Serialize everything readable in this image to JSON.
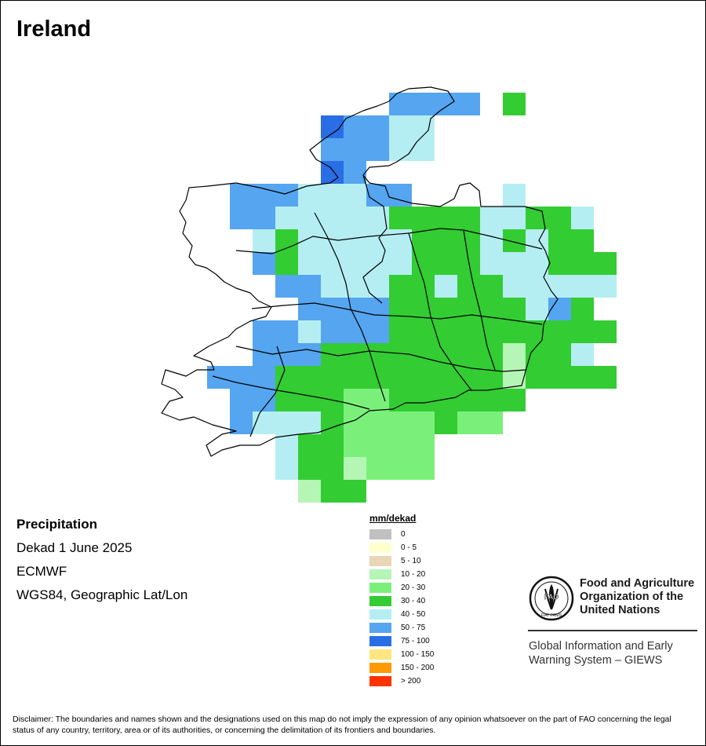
{
  "title": "Ireland",
  "info": {
    "variable": "Precipitation",
    "period": "Dekad 1 June 2025",
    "source": "ECMWF",
    "projection": "WGS84, Geographic Lat/Lon"
  },
  "legend": {
    "unit": "mm/dekad",
    "classes": [
      {
        "label": "0",
        "color": "#c0c0c0"
      },
      {
        "label": "0 - 5",
        "color": "#ffffcc"
      },
      {
        "label": "5 - 10",
        "color": "#ead6b5"
      },
      {
        "label": "10 - 20",
        "color": "#b5f5b5"
      },
      {
        "label": "20 - 30",
        "color": "#7af07a"
      },
      {
        "label": "30 - 40",
        "color": "#33cc33"
      },
      {
        "label": "40 - 50",
        "color": "#b5eef2"
      },
      {
        "label": "50 - 75",
        "color": "#55a5f0"
      },
      {
        "label": "75 - 100",
        "color": "#2a6ee6"
      },
      {
        "label": "100 - 150",
        "color": "#ffe680"
      },
      {
        "label": "150 - 200",
        "color": "#ff9a00"
      },
      {
        "label": "> 200",
        "color": "#ff3300"
      }
    ]
  },
  "organization": {
    "name": "Food and Agriculture Organization of the United Nations",
    "program": "Global Information and Early Warning System – GIEWS",
    "logo_text": "FAO",
    "motto": "FIAT PANIS"
  },
  "disclaimer": "Disclaimer: The boundaries and names shown and the designations used on this map do not imply the expression of any opinion whatsoever on the part of FAO concerning the legal status of any country, territory, area or of its authorities, or concerning the delimitation of its frontiers and boundaries.",
  "grid": [
    [
      "",
      "",
      "",
      "",
      "",
      "",
      "",
      "",
      "",
      "",
      "",
      "",
      "",
      "",
      ""
    ],
    [
      "",
      "",
      "",
      "",
      "",
      "",
      "",
      "",
      "",
      "",
      "",
      "",
      "",
      "",
      ""
    ],
    [
      "",
      "",
      "",
      "",
      "",
      "",
      "",
      "",
      "",
      "",
      "",
      "",
      "",
      "",
      ""
    ],
    [
      "",
      "",
      "",
      "",
      "",
      "",
      "",
      "",
      "",
      "",
      "",
      "",
      "",
      "",
      ""
    ],
    [
      "",
      "",
      "",
      "",
      "",
      "",
      "",
      "",
      "",
      "",
      "",
      "",
      "",
      "",
      ""
    ],
    [
      "",
      "",
      "",
      "",
      "",
      "",
      "",
      "",
      "",
      "",
      "",
      "",
      "",
      "",
      ""
    ],
    [
      "",
      "",
      "",
      "",
      "",
      "",
      "",
      "",
      "",
      "",
      "",
      "",
      "",
      "",
      ""
    ],
    [
      "",
      "",
      "",
      "",
      "",
      "",
      "",
      "",
      "",
      "",
      "",
      "",
      "",
      "",
      ""
    ],
    [
      "",
      "",
      "",
      "",
      "",
      "",
      "",
      "",
      "",
      "",
      "",
      "",
      "",
      "",
      ""
    ],
    [
      "",
      "",
      "",
      "",
      "",
      "",
      "",
      "",
      "",
      "",
      "",
      "",
      "",
      "",
      ""
    ],
    [
      "",
      "",
      "",
      "",
      "",
      "",
      "",
      "",
      "",
      "",
      "",
      "",
      "",
      "",
      ""
    ],
    [
      "",
      "",
      "",
      "",
      "",
      "",
      "",
      "",
      "",
      "",
      "",
      "",
      "",
      "",
      ""
    ],
    [
      "",
      "",
      "",
      "",
      "",
      "",
      "",
      "",
      "",
      "",
      "",
      "",
      "",
      "",
      ""
    ],
    [
      "",
      "",
      "",
      "",
      "",
      "",
      "",
      "",
      "",
      "",
      "",
      "",
      "",
      "",
      ""
    ],
    [
      "",
      "",
      "",
      "",
      "",
      "",
      "",
      "",
      "",
      "",
      "",
      "",
      "",
      "",
      ""
    ],
    [
      "",
      "",
      "",
      "",
      "",
      "",
      "",
      "",
      "",
      "",
      "",
      "",
      "",
      "",
      ""
    ]
  ]
}
